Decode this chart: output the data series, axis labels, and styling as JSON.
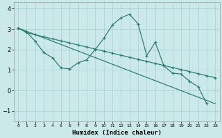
{
  "xlabel": "Humidex (Indice chaleur)",
  "bg_color": "#cce9e9",
  "line_color": "#2d7d6e",
  "grid_color": "#aacfcf",
  "xlim": [
    -0.5,
    23.5
  ],
  "ylim": [
    -1.5,
    4.3
  ],
  "xticks": [
    0,
    1,
    2,
    3,
    4,
    5,
    6,
    7,
    8,
    9,
    10,
    11,
    12,
    13,
    14,
    15,
    16,
    17,
    18,
    19,
    20,
    21,
    22,
    23
  ],
  "yticks": [
    -1,
    0,
    1,
    2,
    3,
    4
  ],
  "line1_x": [
    0,
    1,
    2,
    3,
    4,
    5,
    6,
    7,
    8,
    9,
    10,
    11,
    12,
    13,
    14,
    15,
    16,
    17,
    18,
    19,
    20,
    21,
    22
  ],
  "line1_y": [
    3.05,
    2.85,
    2.4,
    1.85,
    1.6,
    1.1,
    1.05,
    1.35,
    1.5,
    2.0,
    2.55,
    3.2,
    3.55,
    3.72,
    3.25,
    1.7,
    2.35,
    1.2,
    0.85,
    0.8,
    0.45,
    0.18,
    -0.65
  ],
  "line2_x": [
    0,
    23
  ],
  "line2_y": [
    3.05,
    -0.65
  ],
  "line3_x": [
    0,
    1,
    2,
    3,
    4,
    5,
    6,
    7,
    8,
    9,
    10,
    11,
    12,
    13,
    14,
    15,
    16,
    17,
    18,
    19,
    20,
    21,
    22,
    23
  ],
  "line3_y": [
    3.05,
    2.82,
    2.72,
    2.62,
    2.52,
    2.42,
    2.32,
    2.22,
    2.12,
    2.02,
    1.92,
    1.82,
    1.72,
    1.62,
    1.52,
    1.42,
    1.32,
    1.22,
    1.12,
    1.02,
    0.92,
    0.82,
    0.72,
    0.62
  ]
}
